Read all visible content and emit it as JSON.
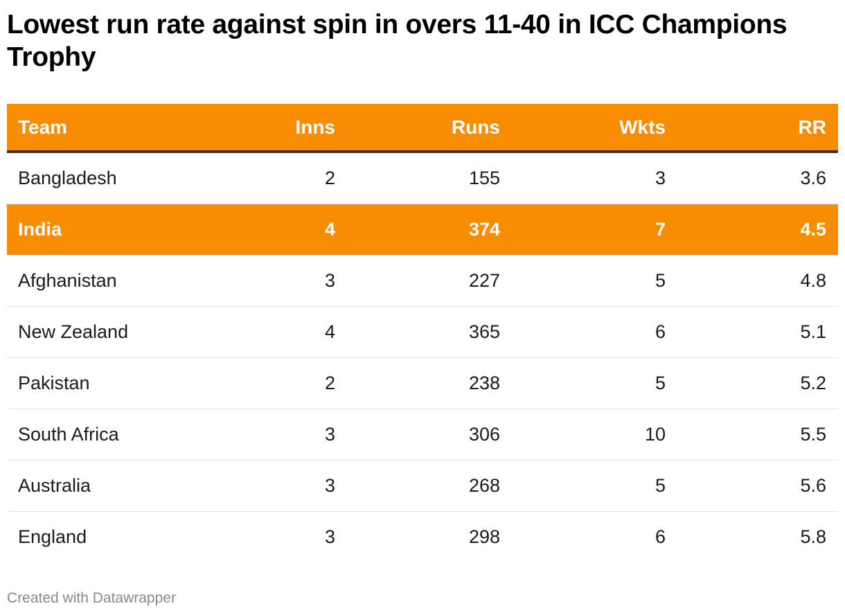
{
  "title": "Lowest run rate against spin in overs 11-40 in ICC Champions Trophy",
  "colors": {
    "accent": "#f88d04",
    "header_rule": "#333333",
    "row_divider": "#e2e2e2",
    "footer_text": "#8a8a8a"
  },
  "chart_data": {
    "type": "table",
    "title": "Lowest run rate against spin in overs 11-40 in ICC Champions Trophy",
    "columns": [
      "Team",
      "Inns",
      "Runs",
      "Wkts",
      "RR"
    ],
    "rows": [
      {
        "team": "Bangladesh",
        "inns": "2",
        "runs": "155",
        "wkts": "3",
        "rr": "3.6",
        "highlight": false
      },
      {
        "team": "India",
        "inns": "4",
        "runs": "374",
        "wkts": "7",
        "rr": "4.5",
        "highlight": true
      },
      {
        "team": "Afghanistan",
        "inns": "3",
        "runs": "227",
        "wkts": "5",
        "rr": "4.8",
        "highlight": false
      },
      {
        "team": "New Zealand",
        "inns": "4",
        "runs": "365",
        "wkts": "6",
        "rr": "5.1",
        "highlight": false
      },
      {
        "team": "Pakistan",
        "inns": "2",
        "runs": "238",
        "wkts": "5",
        "rr": "5.2",
        "highlight": false
      },
      {
        "team": "South Africa",
        "inns": "3",
        "runs": "306",
        "wkts": "10",
        "rr": "5.5",
        "highlight": false
      },
      {
        "team": "Australia",
        "inns": "3",
        "runs": "268",
        "wkts": "5",
        "rr": "5.6",
        "highlight": false
      },
      {
        "team": "England",
        "inns": "3",
        "runs": "298",
        "wkts": "6",
        "rr": "5.8",
        "highlight": false
      }
    ]
  },
  "footer": "Created with Datawrapper"
}
